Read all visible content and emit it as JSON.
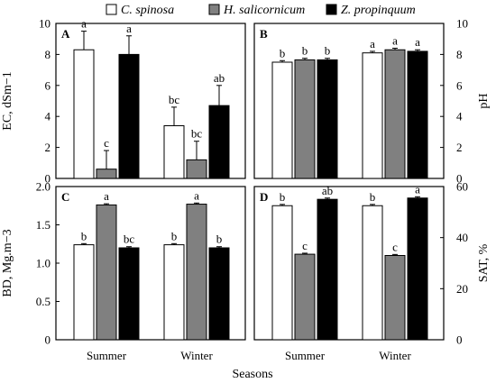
{
  "legend": [
    {
      "name": "C. spinosa",
      "color": "#ffffff"
    },
    {
      "name": "H. salicornicum",
      "color": "#808080"
    },
    {
      "name": "Z. propinquum",
      "color": "#000000"
    }
  ],
  "xlabel": "Seasons",
  "chart_data": [
    {
      "type": "bar",
      "panel": "A",
      "ylabel": "EC, dSm−1",
      "ylim": [
        0,
        10
      ],
      "yticks": [
        "0",
        "2",
        "4",
        "6",
        "8",
        "10"
      ],
      "y_axis_side": "left",
      "categories": [
        "Summer",
        "Winter"
      ],
      "series": [
        {
          "name": "C. spinosa",
          "values": [
            8.3,
            3.4
          ],
          "errors": [
            1.2,
            1.2
          ],
          "letters": [
            "a",
            "bc"
          ]
        },
        {
          "name": "H. salicornicum",
          "values": [
            0.6,
            1.2
          ],
          "errors": [
            1.2,
            1.2
          ],
          "letters": [
            "c",
            "bc"
          ]
        },
        {
          "name": "Z. propinquum",
          "values": [
            8.0,
            4.7
          ],
          "errors": [
            1.2,
            1.3
          ],
          "letters": [
            "a",
            "ab"
          ]
        }
      ]
    },
    {
      "type": "bar",
      "panel": "B",
      "ylabel": "pH",
      "ylim": [
        0,
        10
      ],
      "yticks": [
        "0",
        "2",
        "4",
        "6",
        "8",
        "10"
      ],
      "y_axis_side": "right",
      "categories": [
        "Summer",
        "Winter"
      ],
      "series": [
        {
          "name": "C. spinosa",
          "values": [
            7.5,
            8.1
          ],
          "errors": [
            0.1,
            0.1
          ],
          "letters": [
            "b",
            "a"
          ]
        },
        {
          "name": "H. salicornicum",
          "values": [
            7.65,
            8.3
          ],
          "errors": [
            0.1,
            0.1
          ],
          "letters": [
            "b",
            "a"
          ]
        },
        {
          "name": "Z. propinquum",
          "values": [
            7.65,
            8.2
          ],
          "errors": [
            0.1,
            0.1
          ],
          "letters": [
            "b",
            "a"
          ]
        }
      ]
    },
    {
      "type": "bar",
      "panel": "C",
      "ylabel": "BD, Mg.m−3",
      "ylim": [
        0,
        2.0
      ],
      "yticks": [
        "0",
        "0.5",
        "1.0",
        "1.5",
        "2.0"
      ],
      "y_axis_side": "left",
      "categories": [
        "Summer",
        "Winter"
      ],
      "series": [
        {
          "name": "C. spinosa",
          "values": [
            1.24,
            1.24
          ],
          "errors": [
            0.015,
            0.015
          ],
          "letters": [
            "b",
            "b"
          ]
        },
        {
          "name": "H. salicornicum",
          "values": [
            1.76,
            1.77
          ],
          "errors": [
            0.015,
            0.015
          ],
          "letters": [
            "a",
            "a"
          ]
        },
        {
          "name": "Z. propinquum",
          "values": [
            1.2,
            1.2
          ],
          "errors": [
            0.015,
            0.015
          ],
          "letters": [
            "bc",
            "b"
          ]
        }
      ]
    },
    {
      "type": "bar",
      "panel": "D",
      "ylabel": "SAT, %",
      "ylim": [
        0,
        60
      ],
      "yticks": [
        "0",
        "20",
        "40",
        "60"
      ],
      "y_axis_side": "right",
      "categories": [
        "Summer",
        "Winter"
      ],
      "series": [
        {
          "name": "C. spinosa",
          "values": [
            52.5,
            52.5
          ],
          "errors": [
            0.5,
            0.5
          ],
          "letters": [
            "b",
            "b"
          ]
        },
        {
          "name": "H. salicornicum",
          "values": [
            33.5,
            33.0
          ],
          "errors": [
            0.4,
            0.4
          ],
          "letters": [
            "c",
            "c"
          ]
        },
        {
          "name": "Z. propinquum",
          "values": [
            55.0,
            55.5
          ],
          "errors": [
            0.5,
            0.5
          ],
          "letters": [
            "ab",
            "a"
          ]
        }
      ]
    }
  ]
}
